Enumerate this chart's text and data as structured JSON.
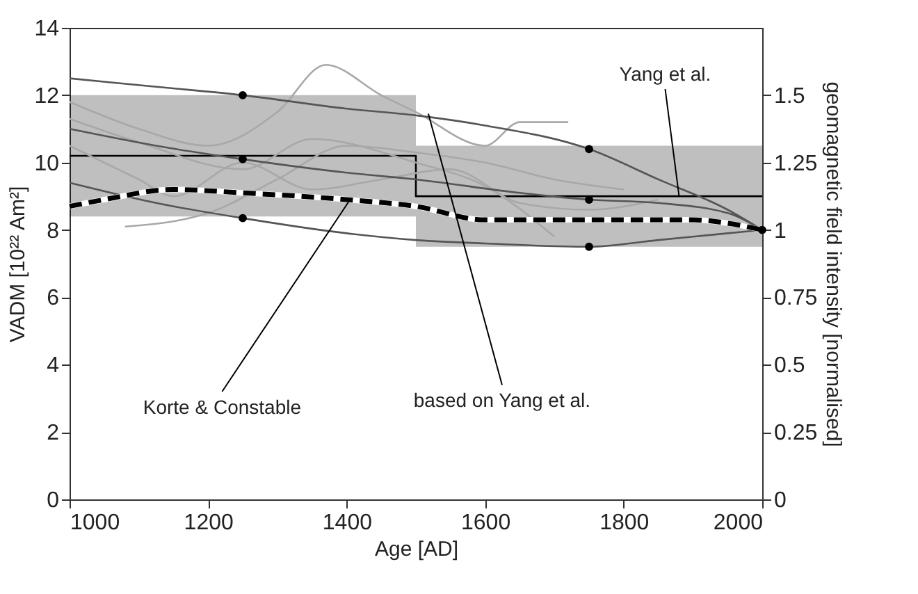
{
  "chart_data": {
    "type": "line",
    "xlabel": "Age [AD]",
    "ylabel": "VADM [10²² Am²]",
    "y2label": "geomagnetic field intensity [normalised]",
    "xlim": [
      1000,
      2000
    ],
    "xticks": [
      1000,
      1200,
      1400,
      1600,
      1800,
      2000
    ],
    "ylim": [
      0,
      14
    ],
    "yticks": [
      0,
      2,
      4,
      6,
      8,
      10,
      12,
      14
    ],
    "y2lim": [
      0,
      1.75
    ],
    "y2ticks": [
      0,
      0.25,
      0.5,
      0.75,
      1,
      1.25,
      1.5
    ],
    "grid": false,
    "series": [
      {
        "type": "step",
        "color": "#000000",
        "x": [
          1000,
          1500,
          2000
        ],
        "values": [
          10.2,
          9.0,
          9.0
        ],
        "lower": [
          8.4,
          7.5,
          7.5
        ],
        "upper": [
          12.0,
          10.5,
          10.5
        ]
      },
      {
        "color": "#a8a8a8",
        "x": [
          1000,
          1100,
          1200,
          1300,
          1370,
          1450,
          1500,
          1600,
          1650,
          1700,
          1720
        ],
        "values": [
          11.8,
          11.0,
          10.5,
          11.5,
          12.9,
          12.0,
          11.5,
          10.5,
          11.2,
          11.2,
          11.2
        ]
      },
      {
        "color": "#a8a8a8",
        "x": [
          1080,
          1200,
          1300,
          1400,
          1500,
          1600,
          1700,
          1800
        ],
        "values": [
          8.1,
          8.5,
          9.5,
          10.5,
          10.3,
          10.0,
          9.5,
          9.2
        ]
      },
      {
        "color": "#a8a8a8",
        "x": [
          1000,
          1100,
          1150,
          1250,
          1350,
          1450,
          1550,
          1650,
          1750,
          1850
        ],
        "values": [
          10.5,
          9.5,
          9.0,
          10.0,
          9.2,
          9.5,
          9.8,
          8.8,
          8.6,
          8.9
        ]
      },
      {
        "color": "#a8a8a8",
        "x": [
          1000,
          1100,
          1250,
          1350,
          1500,
          1600,
          1700
        ],
        "values": [
          11.3,
          10.6,
          9.8,
          10.7,
          10.0,
          9.3,
          7.8
        ]
      },
      {
        "color": "#555555",
        "x": [
          1000,
          1125,
          1250,
          1400,
          1500,
          1600,
          1750,
          1850,
          1950,
          2000
        ],
        "values": [
          12.5,
          12.25,
          12.0,
          11.6,
          11.4,
          11.1,
          10.4,
          9.5,
          8.6,
          8.0
        ]
      },
      {
        "color": "#555555",
        "x": [
          1000,
          1125,
          1250,
          1400,
          1500,
          1650,
          1750,
          1850,
          1950,
          2000
        ],
        "values": [
          11.0,
          10.5,
          10.1,
          9.7,
          9.5,
          9.1,
          8.9,
          8.8,
          8.5,
          8.0
        ]
      },
      {
        "color": "#555555",
        "x": [
          1000,
          1125,
          1250,
          1400,
          1500,
          1600,
          1750,
          1850,
          1950,
          2000
        ],
        "values": [
          9.4,
          8.8,
          8.35,
          7.9,
          7.7,
          7.6,
          7.5,
          7.7,
          7.9,
          8.0
        ]
      },
      {
        "color": "#000000",
        "line_style": "dashed",
        "x": [
          1000,
          1050,
          1150,
          1250,
          1400,
          1500,
          1600,
          1700,
          1800,
          1900,
          1950,
          2000
        ],
        "values": [
          8.7,
          8.9,
          9.2,
          9.1,
          8.9,
          8.7,
          8.3,
          8.3,
          8.3,
          8.3,
          8.2,
          8.0
        ]
      },
      {
        "type": "scatter",
        "color": "#000000",
        "marker": "circle",
        "x": [
          1250,
          1250,
          1250,
          1750,
          1750,
          1750,
          2000
        ],
        "values": [
          12.0,
          10.1,
          8.35,
          10.4,
          8.9,
          7.5,
          8.0
        ]
      }
    ],
    "annotations": [
      {
        "text": "Yang et al.",
        "x": 1880,
        "y": 9.0
      },
      {
        "text": "Korte & Constable",
        "x": 1405,
        "y": 8.9
      },
      {
        "text": "based on Yang et al.",
        "x": 1518,
        "y": 11.45
      }
    ]
  }
}
